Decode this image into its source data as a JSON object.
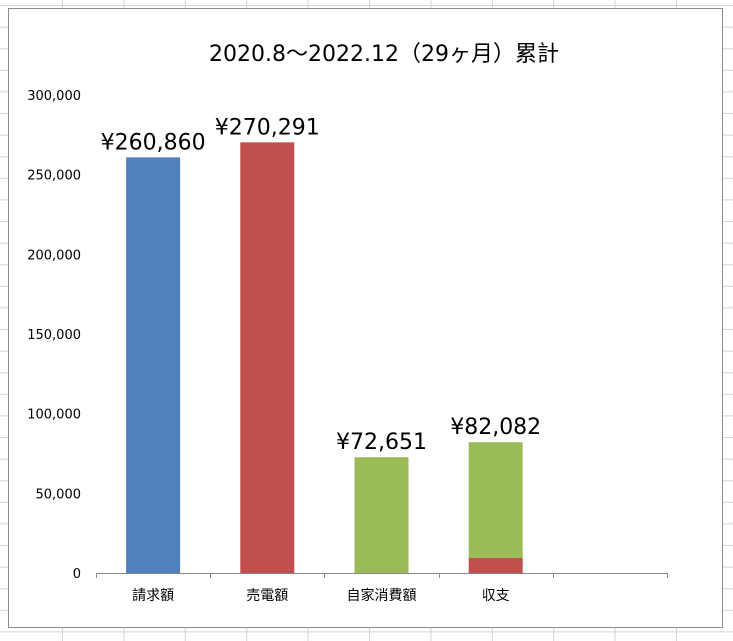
{
  "chart_data": {
    "type": "bar",
    "stacked": true,
    "title": "2020.8〜2022.12（29ヶ月）累計",
    "categories": [
      "請求額",
      "売電額",
      "自家消費額",
      "収支",
      ""
    ],
    "series": [
      {
        "values": [
          260860,
          0,
          0,
          0,
          null
        ],
        "color": "#4f81bd"
      },
      {
        "values": [
          0,
          270291,
          0,
          9431,
          null
        ],
        "color": "#c0504d"
      },
      {
        "values": [
          0,
          0,
          72651,
          72651,
          null
        ],
        "color": "#9bbb59"
      }
    ],
    "data_labels": [
      "¥260,860",
      "¥270,291",
      "¥72,651",
      "¥82,082",
      ""
    ],
    "totals": [
      260860,
      270291,
      72651,
      82082,
      null
    ],
    "ylim": [
      0,
      300000
    ],
    "yticks": [
      "0",
      "50,000",
      "100,000",
      "150,000",
      "200,000",
      "250,000",
      "300,000"
    ],
    "ytick_values": [
      0,
      50000,
      100000,
      150000,
      200000,
      250000,
      300000
    ],
    "grid": false,
    "legend": "none"
  }
}
